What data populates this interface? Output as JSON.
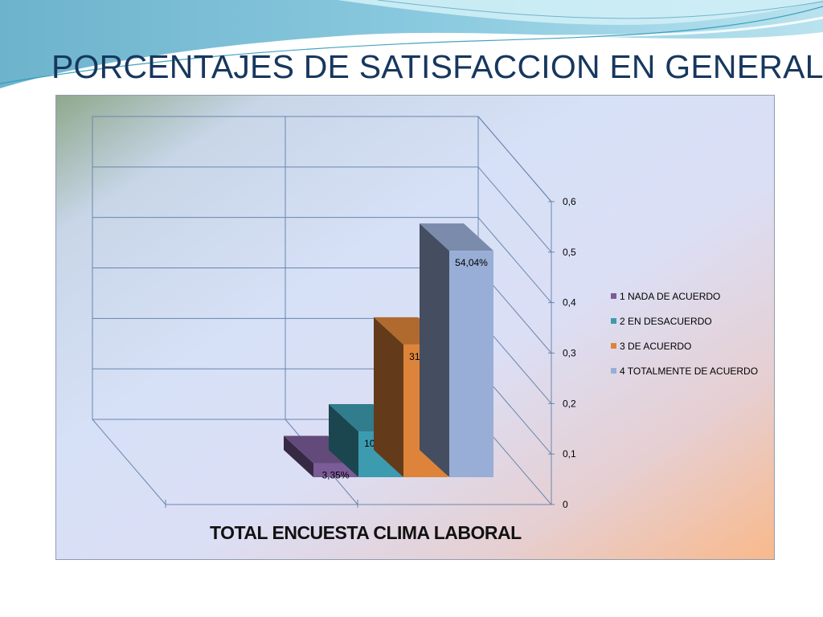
{
  "slide": {
    "title": "PORCENTAJES DE SATISFACCION EN GENERAL"
  },
  "chart_data": {
    "type": "bar",
    "variant": "3d-clustered-column",
    "title": "",
    "xlabel": "TOTAL ENCUESTA CLIMA LABORAL",
    "ylabel": "",
    "ylim": [
      0,
      0.6
    ],
    "yticks": [
      "0",
      "0,1",
      "0,2",
      "0,3",
      "0,4",
      "0,5",
      "0,6"
    ],
    "grid": true,
    "legend_position": "right",
    "series": [
      {
        "name": "1 NADA DE ACUERDO",
        "value": 0.0335,
        "label": "3,35%",
        "color": "#7a5c98"
      },
      {
        "name": "2 EN DESACUERDO",
        "value": 0.1094,
        "label": "10,94%",
        "color": "#3d9bb0"
      },
      {
        "name": "3 DE ACUERDO",
        "value": 0.3167,
        "label": "31,67%",
        "color": "#dd843a"
      },
      {
        "name": "4 TOTALMENTE DE ACUERDO",
        "value": 0.5404,
        "label": "54,04%",
        "color": "#98aed6"
      }
    ]
  }
}
